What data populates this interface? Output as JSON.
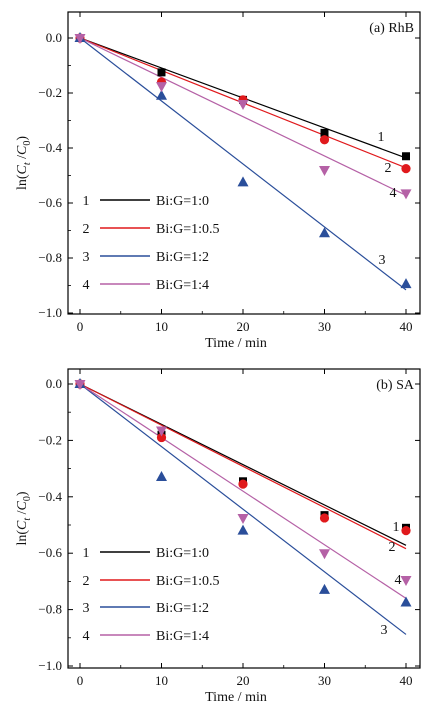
{
  "chart_data": [
    {
      "type": "scatter",
      "title": "(a) RhB",
      "xlabel": "Time / min",
      "ylabel": "ln(Ct / C0)",
      "xlim": [
        -2,
        41
      ],
      "ylim": [
        -1.0,
        0.1
      ],
      "xticks": [
        0,
        10,
        20,
        30,
        40
      ],
      "yticks": [
        0.0,
        -0.2,
        -0.4,
        -0.6,
        -0.8,
        -1.0
      ],
      "xtick_labels": [
        "0",
        "10",
        "20",
        "30",
        "40"
      ],
      "ytick_labels": [
        "0.0",
        "−0.2",
        "−0.4",
        "−0.6",
        "−0.8",
        "−1.0"
      ],
      "series": [
        {
          "id": "1",
          "name": "Bi:G=1:0",
          "color": "#000000",
          "marker": "square",
          "x": [
            0,
            10,
            20,
            30,
            40
          ],
          "y": [
            0.0,
            -0.125,
            -0.225,
            -0.345,
            -0.43
          ],
          "fit_slope": -0.0109
        },
        {
          "id": "2",
          "name": "Bi:G=1:0.5",
          "color": "#e0191c",
          "marker": "circle",
          "x": [
            0,
            10,
            20,
            30,
            40
          ],
          "y": [
            0.0,
            -0.16,
            -0.225,
            -0.37,
            -0.475
          ],
          "fit_slope": -0.0118
        },
        {
          "id": "3",
          "name": "Bi:G=1:2",
          "color": "#2a4e9a",
          "marker": "triangle-up",
          "x": [
            0,
            10,
            20,
            30,
            40
          ],
          "y": [
            0.0,
            -0.21,
            -0.525,
            -0.71,
            -0.895
          ],
          "fit_slope": -0.0229
        },
        {
          "id": "4",
          "name": "Bi:G=1:4",
          "color": "#b561a6",
          "marker": "triangle-down",
          "x": [
            0,
            10,
            20,
            30,
            40
          ],
          "y": [
            0.0,
            -0.175,
            -0.24,
            -0.48,
            -0.565
          ],
          "fit_slope": -0.0143
        }
      ]
    },
    {
      "type": "scatter",
      "title": "(b) SA",
      "xlabel": "Time / min",
      "ylabel": "ln(Ct / C0)",
      "xlim": [
        -2,
        41
      ],
      "ylim": [
        -1.0,
        0.1
      ],
      "xticks": [
        0,
        10,
        20,
        30,
        40
      ],
      "yticks": [
        0.0,
        -0.2,
        -0.4,
        -0.6,
        -0.8,
        -1.0
      ],
      "xtick_labels": [
        "0",
        "10",
        "20",
        "30",
        "40"
      ],
      "ytick_labels": [
        "0.0",
        "−0.2",
        "−0.4",
        "−0.6",
        "−0.8",
        "−1.0"
      ],
      "series": [
        {
          "id": "1",
          "name": "Bi:G=1:0",
          "color": "#000000",
          "marker": "square",
          "x": [
            0,
            10,
            20,
            30,
            40
          ],
          "y": [
            0.0,
            -0.18,
            -0.345,
            -0.465,
            -0.51
          ],
          "fit_slope": -0.0143
        },
        {
          "id": "2",
          "name": "Bi:G=1:0.5",
          "color": "#e0191c",
          "marker": "circle",
          "x": [
            0,
            10,
            20,
            30,
            40
          ],
          "y": [
            0.0,
            -0.19,
            -0.355,
            -0.475,
            -0.52
          ],
          "fit_slope": -0.0146
        },
        {
          "id": "3",
          "name": "Bi:G=1:2",
          "color": "#2a4e9a",
          "marker": "triangle-up",
          "x": [
            0,
            10,
            20,
            30,
            40
          ],
          "y": [
            0.0,
            -0.33,
            -0.52,
            -0.73,
            -0.775
          ],
          "fit_slope": -0.0222
        },
        {
          "id": "4",
          "name": "Bi:G=1:4",
          "color": "#b561a6",
          "marker": "triangle-down",
          "x": [
            0,
            10,
            20,
            30,
            40
          ],
          "y": [
            0.0,
            -0.165,
            -0.475,
            -0.6,
            -0.695
          ],
          "fit_slope": -0.019
        }
      ]
    }
  ]
}
